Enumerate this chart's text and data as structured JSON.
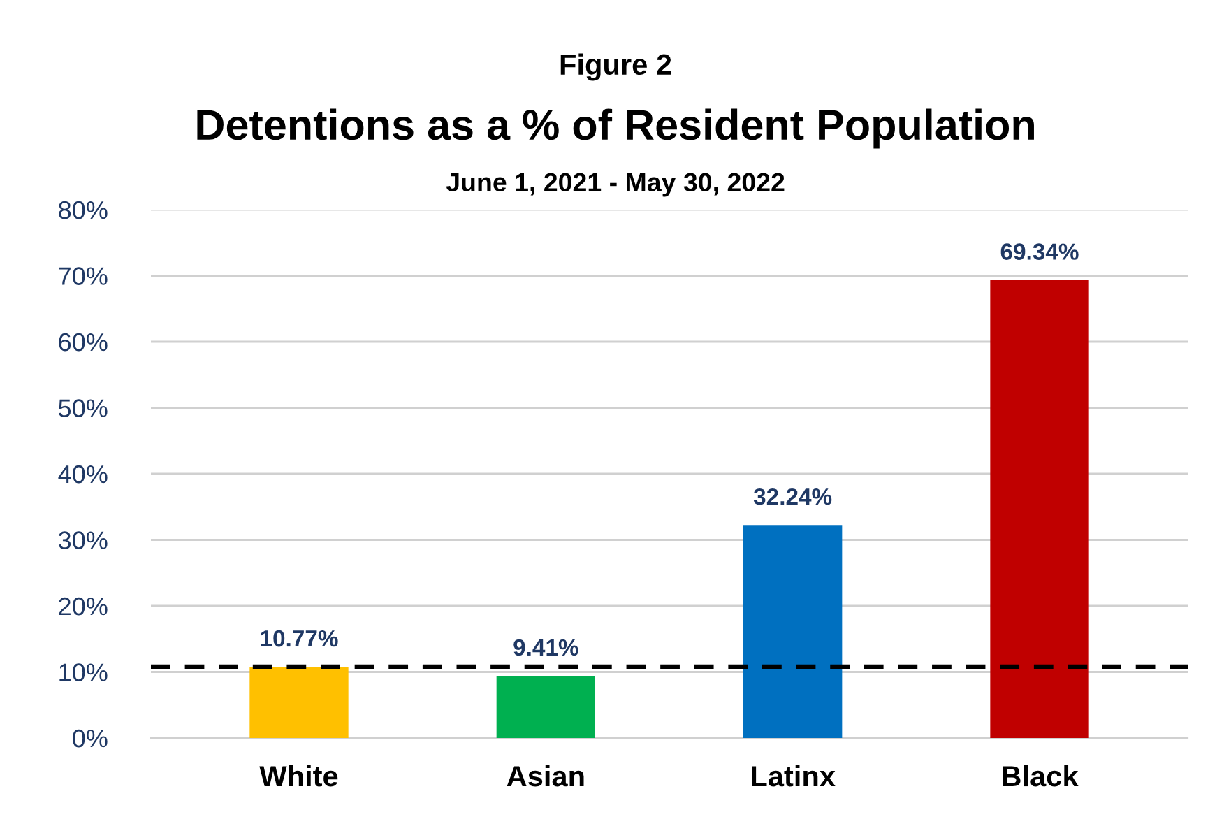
{
  "chart_data": {
    "type": "bar",
    "annotations": [
      "Figure 2"
    ],
    "title": "Detentions as a % of Resident Population",
    "subtitle": "June 1, 2021 - May 30, 2022",
    "categories": [
      "White",
      "Asian",
      "Latinx",
      "Black"
    ],
    "values": [
      10.77,
      9.41,
      32.24,
      69.34
    ],
    "colors": [
      "#ffc000",
      "#00b050",
      "#0070c0",
      "#c00000"
    ],
    "value_labels": [
      "10.77%",
      "9.41%",
      "32.24%",
      "69.34%"
    ],
    "ylim": [
      0,
      80
    ],
    "yticks": [
      {
        "value": 0,
        "label": "0%"
      },
      {
        "value": 10,
        "label": "10%"
      },
      {
        "value": 20,
        "label": "20%"
      },
      {
        "value": 30,
        "label": "30%"
      },
      {
        "value": 40,
        "label": "40%"
      },
      {
        "value": 50,
        "label": "50%"
      },
      {
        "value": 60,
        "label": "60%"
      },
      {
        "value": 70,
        "label": "70%"
      },
      {
        "value": 80,
        "label": "80%"
      }
    ],
    "grid": "y",
    "ref_lines": [
      {
        "axis": "y",
        "value": 10.77,
        "color": "#000000",
        "line_style": "dashed"
      }
    ]
  }
}
